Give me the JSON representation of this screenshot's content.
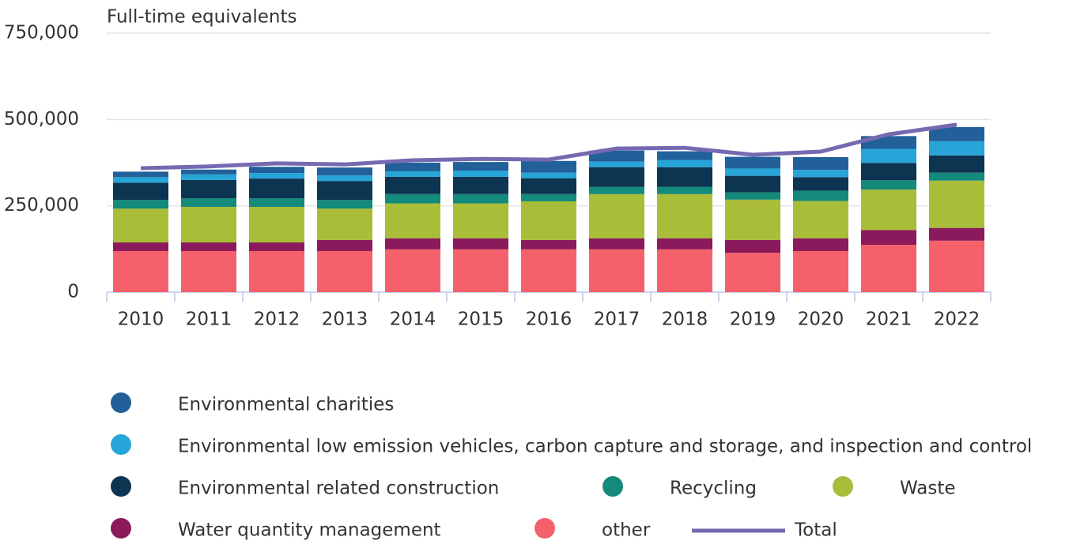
{
  "chart_data": {
    "type": "bar",
    "stacked": true,
    "y_label": "Full-time equivalents",
    "categories": [
      "2010",
      "2011",
      "2012",
      "2013",
      "2014",
      "2015",
      "2016",
      "2017",
      "2018",
      "2019",
      "2020",
      "2021",
      "2022"
    ],
    "ylim": [
      0,
      750000
    ],
    "yticks": [
      0,
      {
        "value": 250000,
        "label": "250,000"
      },
      {
        "value": 500000,
        "label": "500,000"
      },
      {
        "value": 750000,
        "label": "750,000"
      }
    ],
    "grid": true,
    "series": [
      {
        "name": "Environmental charities",
        "color": "#22609a",
        "values": [
          16000,
          14000,
          18000,
          23000,
          25000,
          25000,
          34000,
          32000,
          25000,
          34000,
          37000,
          37000,
          41000
        ]
      },
      {
        "name": "Environmental low emission vehicles, carbon capture and storage, and inspection and control",
        "color": "#27a4d8",
        "values": [
          16000,
          16000,
          16000,
          16000,
          16000,
          18000,
          16000,
          16000,
          21000,
          21000,
          21000,
          41000,
          41000
        ]
      },
      {
        "name": "Environmental related construction",
        "color": "#0d3451",
        "values": [
          50000,
          53000,
          57000,
          55000,
          50000,
          50000,
          46000,
          57000,
          57000,
          48000,
          39000,
          50000,
          50000
        ]
      },
      {
        "name": "Recycling",
        "color": "#138a7a",
        "values": [
          25000,
          25000,
          25000,
          25000,
          27000,
          27000,
          21000,
          21000,
          21000,
          21000,
          30000,
          27000,
          23000
        ]
      },
      {
        "name": "Waste",
        "color": "#a9bd38",
        "values": [
          98000,
          103000,
          103000,
          91000,
          101000,
          101000,
          112000,
          128000,
          128000,
          117000,
          108000,
          117000,
          137000
        ]
      },
      {
        "name": "Water quantity management",
        "color": "#8a1a5b",
        "values": [
          25000,
          25000,
          25000,
          32000,
          32000,
          32000,
          27000,
          32000,
          32000,
          37000,
          37000,
          43000,
          37000
        ]
      },
      {
        "name": "other",
        "color": "#f4616b",
        "values": [
          119000,
          119000,
          119000,
          119000,
          124000,
          124000,
          124000,
          124000,
          124000,
          114000,
          119000,
          137000,
          149000
        ]
      },
      {
        "name": "Total",
        "type": "line",
        "color": "#7569b1",
        "values": [
          359000,
          364000,
          373000,
          370000,
          382000,
          386000,
          384000,
          416000,
          418000,
          398000,
          407000,
          457000,
          485000
        ]
      }
    ]
  }
}
